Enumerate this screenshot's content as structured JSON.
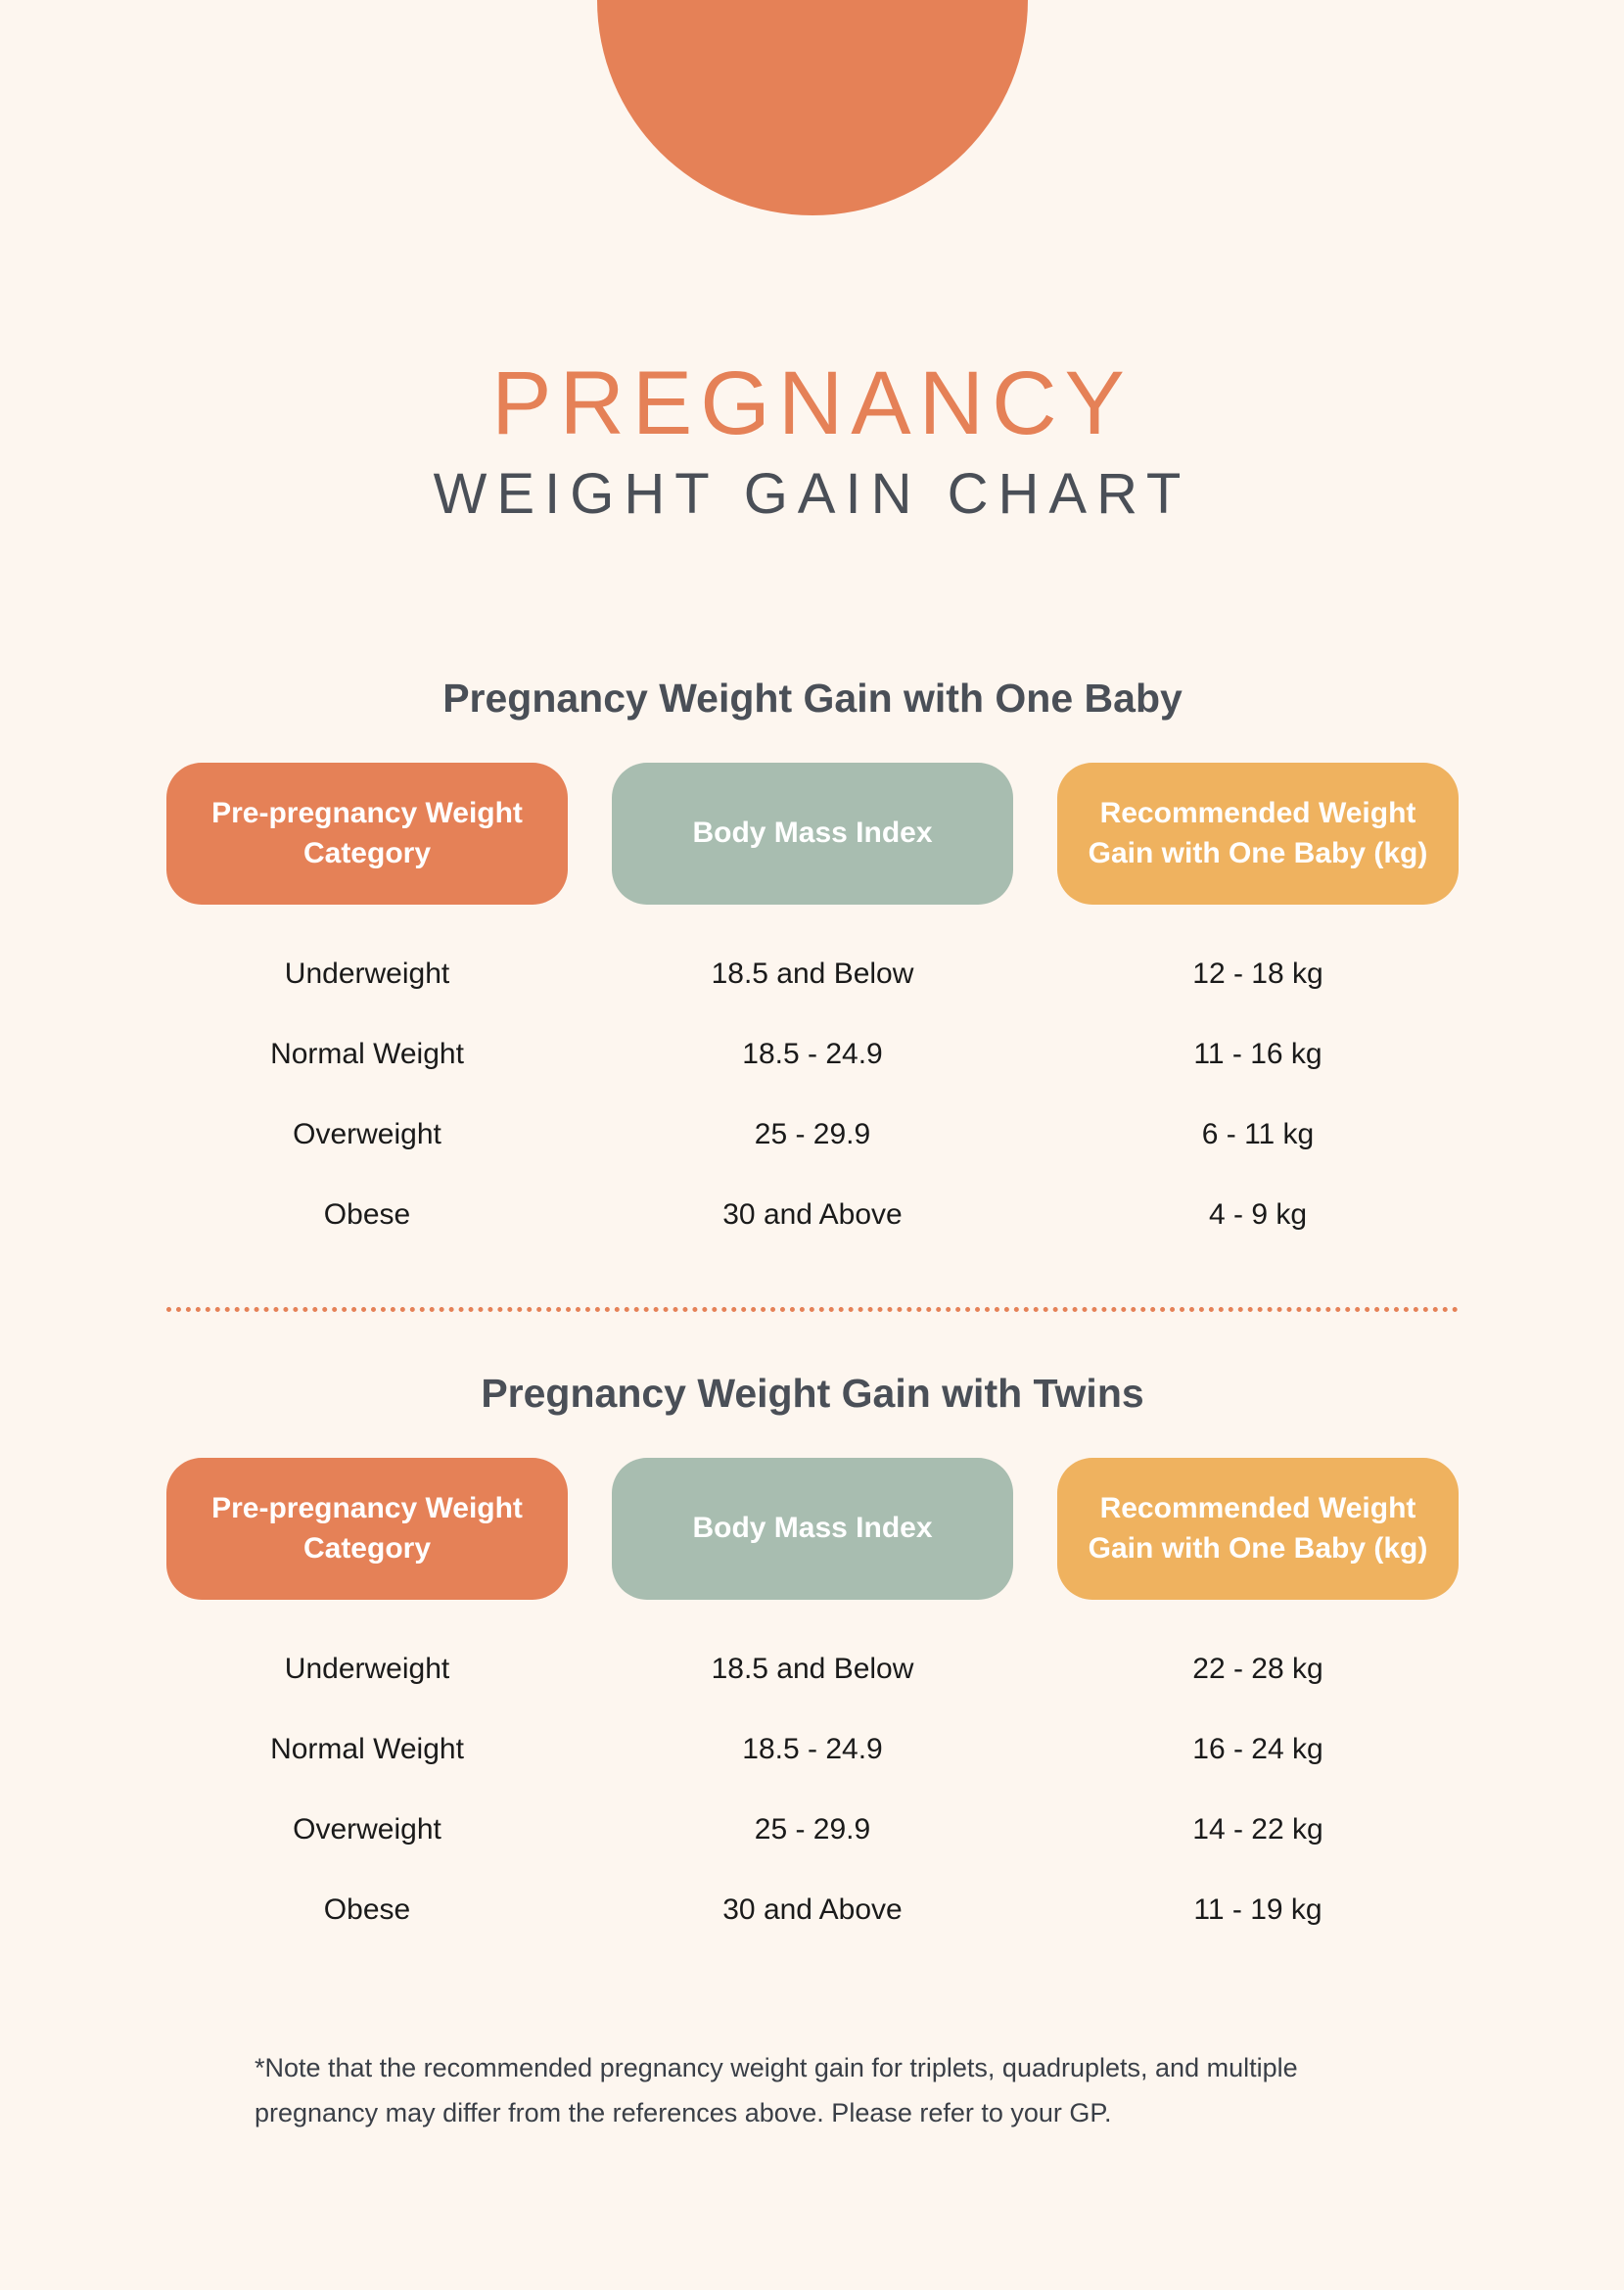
{
  "colors": {
    "background": "#fdf6ef",
    "accent_orange": "#e58157",
    "accent_sage": "#a8bdb0",
    "accent_amber": "#efb25f",
    "text_dark": "#4a4f57",
    "text_body": "#1a1a1a"
  },
  "header": {
    "title_main": "PREGNANCY",
    "title_sub": "WEIGHT GAIN CHART"
  },
  "table1": {
    "title": "Pregnancy Weight Gain with One Baby",
    "columns": [
      "Pre-pregnancy Weight Category",
      "Body Mass Index",
      "Recommended Weight Gain with One Baby (kg)"
    ],
    "rows": [
      [
        "Underweight",
        "18.5 and Below",
        "12 - 18 kg"
      ],
      [
        "Normal Weight",
        "18.5 - 24.9",
        "11 - 16 kg"
      ],
      [
        "Overweight",
        "25 - 29.9",
        "6 - 11 kg"
      ],
      [
        "Obese",
        "30 and Above",
        "4 - 9 kg"
      ]
    ]
  },
  "table2": {
    "title": "Pregnancy Weight Gain with Twins",
    "columns": [
      "Pre-pregnancy Weight Category",
      "Body Mass Index",
      "Recommended Weight Gain with One Baby (kg)"
    ],
    "rows": [
      [
        "Underweight",
        "18.5 and Below",
        "22 - 28 kg"
      ],
      [
        "Normal Weight",
        "18.5 - 24.9",
        "16 - 24 kg"
      ],
      [
        "Overweight",
        "25 - 29.9",
        "14 - 22 kg"
      ],
      [
        "Obese",
        "30 and Above",
        "11 - 19 kg"
      ]
    ]
  },
  "footnote": "*Note that the recommended pregnancy weight gain for triplets, quadruplets, and multiple pregnancy may differ from the references above. Please refer to your GP."
}
